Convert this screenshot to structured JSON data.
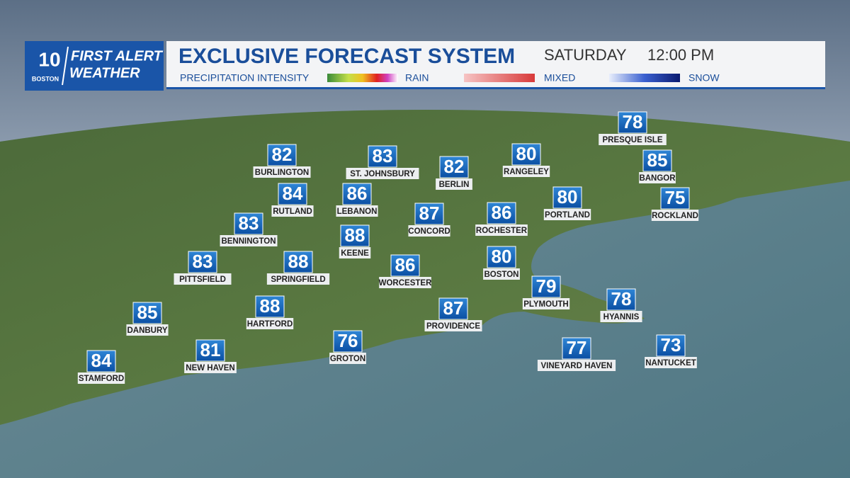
{
  "header": {
    "logo_number": "10",
    "logo_station": "BOSTON",
    "logo_line1": "FIRST ALERT",
    "logo_line2": "WEATHER",
    "title": "EXCLUSIVE FORECAST SYSTEM",
    "day": "SATURDAY",
    "time": "12:00 PM"
  },
  "legend": {
    "label": "PRECIPITATION INTENSITY",
    "rain": "RAIN",
    "mixed": "MIXED",
    "snow": "SNOW"
  },
  "cities": [
    {
      "name": "PRESQUE ISLE",
      "temp": "78"
    },
    {
      "name": "BURLINGTON",
      "temp": "82"
    },
    {
      "name": "ST. JOHNSBURY",
      "temp": "83"
    },
    {
      "name": "BERLIN",
      "temp": "82"
    },
    {
      "name": "RANGELEY",
      "temp": "80"
    },
    {
      "name": "BANGOR",
      "temp": "85"
    },
    {
      "name": "RUTLAND",
      "temp": "84"
    },
    {
      "name": "LEBANON",
      "temp": "86"
    },
    {
      "name": "PORTLAND",
      "temp": "80"
    },
    {
      "name": "ROCKLAND",
      "temp": "75"
    },
    {
      "name": "BENNINGTON",
      "temp": "83"
    },
    {
      "name": "CONCORD",
      "temp": "87"
    },
    {
      "name": "ROCHESTER",
      "temp": "86"
    },
    {
      "name": "KEENE",
      "temp": "88"
    },
    {
      "name": "PITTSFIELD",
      "temp": "83"
    },
    {
      "name": "SPRINGFIELD",
      "temp": "88"
    },
    {
      "name": "WORCESTER",
      "temp": "86"
    },
    {
      "name": "BOSTON",
      "temp": "80"
    },
    {
      "name": "PLYMOUTH",
      "temp": "79"
    },
    {
      "name": "HYANNIS",
      "temp": "78"
    },
    {
      "name": "DANBURY",
      "temp": "85"
    },
    {
      "name": "HARTFORD",
      "temp": "88"
    },
    {
      "name": "PROVIDENCE",
      "temp": "87"
    },
    {
      "name": "NEW HAVEN",
      "temp": "81"
    },
    {
      "name": "GROTON",
      "temp": "76"
    },
    {
      "name": "VINEYARD HAVEN",
      "temp": "77"
    },
    {
      "name": "NANTUCKET",
      "temp": "73"
    },
    {
      "name": "STAMFORD",
      "temp": "84"
    }
  ]
}
